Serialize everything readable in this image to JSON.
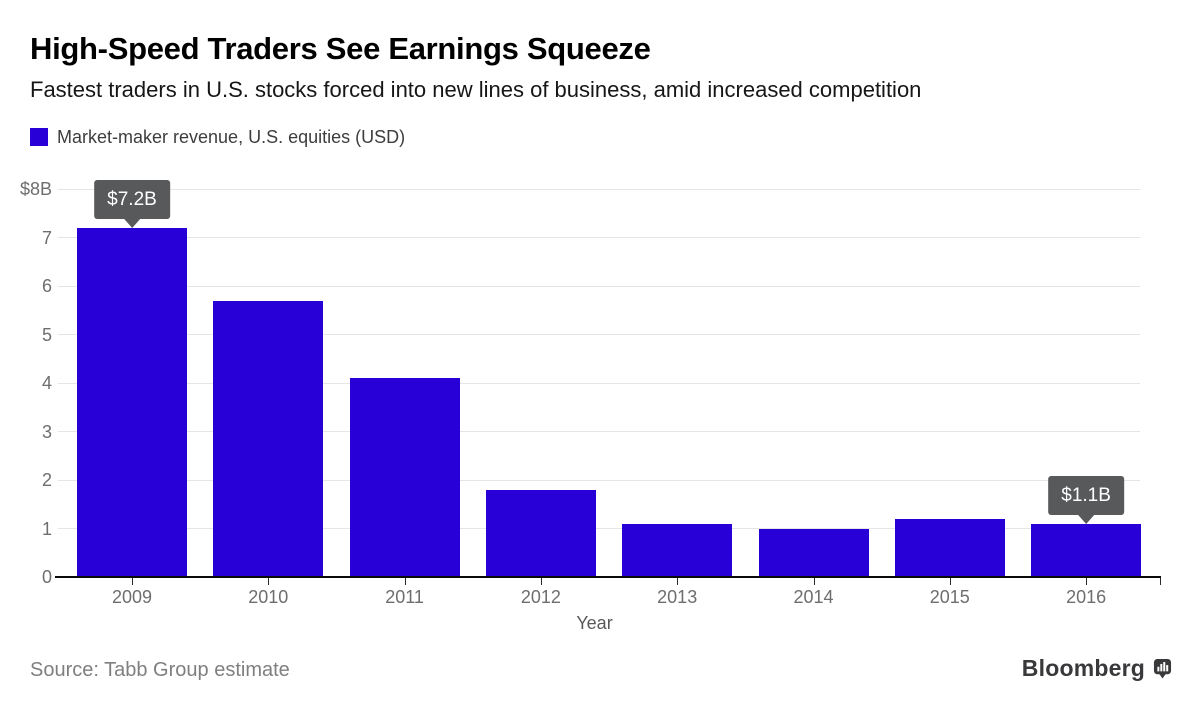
{
  "header": {
    "title": "High-Speed Traders See Earnings Squeeze",
    "subtitle": "Fastest traders in U.S. stocks forced into new lines of business, amid increased competition"
  },
  "legend": {
    "label": "Market-maker revenue, U.S. equities (USD)",
    "swatch_color": "#2800d7"
  },
  "chart_data": {
    "type": "bar",
    "title": "Market-maker revenue, U.S. equities (USD)",
    "categories": [
      "2009",
      "2010",
      "2011",
      "2012",
      "2013",
      "2014",
      "2015",
      "2016"
    ],
    "values": [
      7.2,
      5.7,
      4.1,
      1.8,
      1.1,
      1.0,
      1.2,
      1.1
    ],
    "xlabel": "Year",
    "ylabel": "",
    "ylim": [
      0,
      8
    ],
    "yticks": [
      0,
      1,
      2,
      3,
      4,
      5,
      6,
      7,
      8
    ],
    "ytick_labels": [
      "0",
      "1",
      "2",
      "3",
      "4",
      "5",
      "6",
      "7",
      "$8B"
    ],
    "grid": true,
    "legend_position": "top-left",
    "bar_color": "#2800d7",
    "annotation_bg": "#58595b",
    "annotation_text_color": "#ffffff",
    "annotations": [
      {
        "category": "2009",
        "label": "$7.2B"
      },
      {
        "category": "2016",
        "label": "$1.1B"
      }
    ]
  },
  "footer": {
    "source": "Source: Tabb Group estimate",
    "brand": "Bloomberg"
  }
}
